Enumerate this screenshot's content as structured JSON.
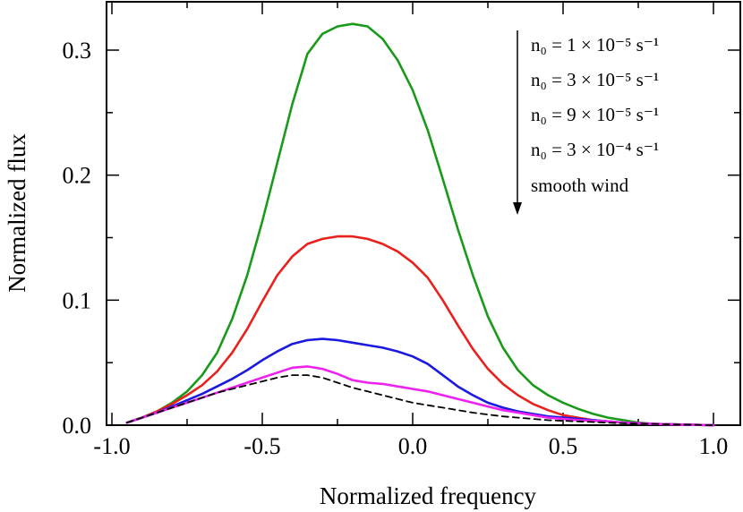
{
  "chart_data": {
    "type": "line",
    "xlabel": "Normalized frequency",
    "ylabel": "Normalized flux",
    "xlim": [
      -1.0,
      1.0
    ],
    "ylim": [
      0.0,
      0.33
    ],
    "x_ticks": [
      "-1.0",
      "-0.5",
      "0.0",
      "0.5",
      "1.0"
    ],
    "y_ticks": [
      "0.0",
      "0.1",
      "0.2",
      "0.3"
    ],
    "legend": {
      "placement": "top-right",
      "entries": [
        "n₀ = 1 × 10⁻⁵ s⁻¹",
        "n₀ = 3 × 10⁻⁵ s⁻¹",
        "n₀ = 9 × 10⁻⁵ s⁻¹",
        "n₀ = 3 × 10⁻⁴ s⁻¹",
        "smooth wind"
      ]
    },
    "series": [
      {
        "color": "#1a9a1a",
        "dash": "solid",
        "points": [
          [
            -0.95,
            0.002
          ],
          [
            -0.9,
            0.006
          ],
          [
            -0.85,
            0.011
          ],
          [
            -0.8,
            0.018
          ],
          [
            -0.75,
            0.027
          ],
          [
            -0.7,
            0.04
          ],
          [
            -0.65,
            0.058
          ],
          [
            -0.6,
            0.085
          ],
          [
            -0.55,
            0.12
          ],
          [
            -0.5,
            0.163
          ],
          [
            -0.45,
            0.21
          ],
          [
            -0.4,
            0.257
          ],
          [
            -0.35,
            0.297
          ],
          [
            -0.3,
            0.313
          ],
          [
            -0.25,
            0.319
          ],
          [
            -0.2,
            0.321
          ],
          [
            -0.15,
            0.319
          ],
          [
            -0.1,
            0.309
          ],
          [
            -0.05,
            0.292
          ],
          [
            0.0,
            0.268
          ],
          [
            0.05,
            0.236
          ],
          [
            0.1,
            0.197
          ],
          [
            0.15,
            0.157
          ],
          [
            0.2,
            0.12
          ],
          [
            0.25,
            0.087
          ],
          [
            0.3,
            0.062
          ],
          [
            0.35,
            0.044
          ],
          [
            0.4,
            0.032
          ],
          [
            0.45,
            0.024
          ],
          [
            0.5,
            0.018
          ],
          [
            0.55,
            0.013
          ],
          [
            0.6,
            0.009
          ],
          [
            0.65,
            0.006
          ],
          [
            0.7,
            0.004
          ],
          [
            0.75,
            0.002
          ],
          [
            0.8,
            0.001
          ],
          [
            0.9,
            0.0005
          ],
          [
            1.0,
            0.0
          ]
        ]
      },
      {
        "color": "#e8211c",
        "dash": "solid",
        "points": [
          [
            -0.95,
            0.002
          ],
          [
            -0.9,
            0.006
          ],
          [
            -0.85,
            0.011
          ],
          [
            -0.8,
            0.017
          ],
          [
            -0.75,
            0.024
          ],
          [
            -0.7,
            0.032
          ],
          [
            -0.65,
            0.043
          ],
          [
            -0.6,
            0.058
          ],
          [
            -0.55,
            0.077
          ],
          [
            -0.5,
            0.099
          ],
          [
            -0.45,
            0.12
          ],
          [
            -0.4,
            0.135
          ],
          [
            -0.35,
            0.145
          ],
          [
            -0.3,
            0.149
          ],
          [
            -0.25,
            0.151
          ],
          [
            -0.2,
            0.151
          ],
          [
            -0.15,
            0.149
          ],
          [
            -0.1,
            0.145
          ],
          [
            -0.05,
            0.139
          ],
          [
            0.0,
            0.13
          ],
          [
            0.05,
            0.118
          ],
          [
            0.1,
            0.1
          ],
          [
            0.15,
            0.08
          ],
          [
            0.2,
            0.061
          ],
          [
            0.25,
            0.045
          ],
          [
            0.3,
            0.033
          ],
          [
            0.35,
            0.024
          ],
          [
            0.4,
            0.017
          ],
          [
            0.45,
            0.012
          ],
          [
            0.5,
            0.008
          ],
          [
            0.55,
            0.006
          ],
          [
            0.6,
            0.004
          ],
          [
            0.7,
            0.002
          ],
          [
            0.8,
            0.001
          ],
          [
            0.9,
            0.0004
          ],
          [
            1.0,
            0.0
          ]
        ]
      },
      {
        "color": "#1a1ae0",
        "dash": "solid",
        "points": [
          [
            -0.95,
            0.002
          ],
          [
            -0.9,
            0.006
          ],
          [
            -0.85,
            0.01
          ],
          [
            -0.8,
            0.015
          ],
          [
            -0.75,
            0.02
          ],
          [
            -0.7,
            0.025
          ],
          [
            -0.65,
            0.031
          ],
          [
            -0.6,
            0.037
          ],
          [
            -0.55,
            0.044
          ],
          [
            -0.5,
            0.052
          ],
          [
            -0.45,
            0.059
          ],
          [
            -0.4,
            0.065
          ],
          [
            -0.35,
            0.068
          ],
          [
            -0.3,
            0.069
          ],
          [
            -0.25,
            0.068
          ],
          [
            -0.2,
            0.066
          ],
          [
            -0.15,
            0.064
          ],
          [
            -0.1,
            0.062
          ],
          [
            -0.05,
            0.059
          ],
          [
            0.0,
            0.055
          ],
          [
            0.05,
            0.049
          ],
          [
            0.1,
            0.04
          ],
          [
            0.15,
            0.031
          ],
          [
            0.2,
            0.024
          ],
          [
            0.25,
            0.018
          ],
          [
            0.3,
            0.014
          ],
          [
            0.35,
            0.011
          ],
          [
            0.4,
            0.009
          ],
          [
            0.45,
            0.007
          ],
          [
            0.5,
            0.006
          ],
          [
            0.55,
            0.005
          ],
          [
            0.6,
            0.004
          ],
          [
            0.65,
            0.003
          ],
          [
            0.7,
            0.002
          ],
          [
            0.8,
            0.001
          ],
          [
            0.9,
            0.0004
          ],
          [
            1.0,
            0.0
          ]
        ]
      },
      {
        "color": "#ee22ee",
        "dash": "solid",
        "points": [
          [
            -0.95,
            0.002
          ],
          [
            -0.9,
            0.006
          ],
          [
            -0.85,
            0.01
          ],
          [
            -0.8,
            0.014
          ],
          [
            -0.75,
            0.018
          ],
          [
            -0.7,
            0.022
          ],
          [
            -0.65,
            0.026
          ],
          [
            -0.6,
            0.03
          ],
          [
            -0.55,
            0.034
          ],
          [
            -0.5,
            0.038
          ],
          [
            -0.45,
            0.042
          ],
          [
            -0.4,
            0.046
          ],
          [
            -0.35,
            0.047
          ],
          [
            -0.3,
            0.045
          ],
          [
            -0.25,
            0.041
          ],
          [
            -0.2,
            0.036
          ],
          [
            -0.15,
            0.034
          ],
          [
            -0.1,
            0.033
          ],
          [
            -0.05,
            0.031
          ],
          [
            0.0,
            0.029
          ],
          [
            0.05,
            0.027
          ],
          [
            0.1,
            0.024
          ],
          [
            0.15,
            0.021
          ],
          [
            0.2,
            0.018
          ],
          [
            0.25,
            0.015
          ],
          [
            0.3,
            0.012
          ],
          [
            0.35,
            0.01
          ],
          [
            0.4,
            0.008
          ],
          [
            0.45,
            0.006
          ],
          [
            0.5,
            0.005
          ],
          [
            0.55,
            0.004
          ],
          [
            0.6,
            0.0035
          ],
          [
            0.65,
            0.003
          ],
          [
            0.7,
            0.002
          ],
          [
            0.8,
            0.001
          ],
          [
            0.9,
            0.0004
          ],
          [
            1.0,
            0.0
          ]
        ]
      },
      {
        "color": "#000000",
        "dash": "dashed",
        "points": [
          [
            -0.95,
            0.002
          ],
          [
            -0.9,
            0.006
          ],
          [
            -0.85,
            0.01
          ],
          [
            -0.8,
            0.014
          ],
          [
            -0.75,
            0.018
          ],
          [
            -0.7,
            0.022
          ],
          [
            -0.65,
            0.026
          ],
          [
            -0.6,
            0.029
          ],
          [
            -0.55,
            0.032
          ],
          [
            -0.5,
            0.035
          ],
          [
            -0.45,
            0.038
          ],
          [
            -0.4,
            0.04
          ],
          [
            -0.35,
            0.04
          ],
          [
            -0.3,
            0.038
          ],
          [
            -0.25,
            0.034
          ],
          [
            -0.2,
            0.03
          ],
          [
            -0.15,
            0.027
          ],
          [
            -0.1,
            0.024
          ],
          [
            -0.05,
            0.021
          ],
          [
            0.0,
            0.018
          ],
          [
            0.05,
            0.016
          ],
          [
            0.1,
            0.014
          ],
          [
            0.15,
            0.012
          ],
          [
            0.2,
            0.01
          ],
          [
            0.25,
            0.0085
          ],
          [
            0.3,
            0.007
          ],
          [
            0.35,
            0.006
          ],
          [
            0.4,
            0.005
          ],
          [
            0.45,
            0.004
          ],
          [
            0.5,
            0.0035
          ],
          [
            0.55,
            0.003
          ],
          [
            0.6,
            0.0025
          ],
          [
            0.7,
            0.0015
          ],
          [
            0.8,
            0.001
          ],
          [
            0.9,
            0.0004
          ],
          [
            1.0,
            0.0
          ]
        ]
      }
    ]
  }
}
